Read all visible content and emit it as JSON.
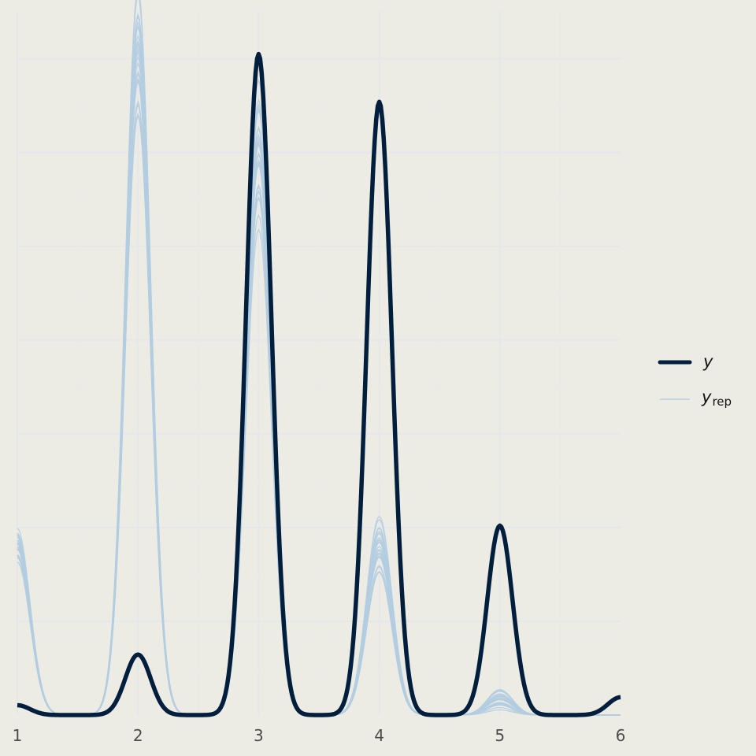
{
  "chart_data": {
    "type": "line",
    "title": "",
    "xlabel": "",
    "ylabel": "",
    "xlim": [
      1,
      6
    ],
    "ylim": [
      0,
      1.5
    ],
    "x_ticks": [
      "1",
      "2",
      "3",
      "4",
      "5",
      "6"
    ],
    "grid": true,
    "legend_position": "right",
    "legend": [
      {
        "label": "y",
        "subscript": ""
      },
      {
        "label": "y",
        "subscript": "rep"
      }
    ],
    "colors": {
      "background": "#ecece5",
      "grid_major": "#e6e7ea",
      "grid_minor": "#e9e9e6",
      "y": "#011f3d",
      "yrep": "#b3cde0",
      "tick_label": "#4d4d4d"
    },
    "series": [
      {
        "name": "y",
        "mixture": {
          "bandwidth": 0.105,
          "modes": [
            1,
            2,
            3,
            4,
            5,
            6
          ],
          "peak_density": [
            0.021,
            0.129,
            1.41,
            1.308,
            0.404,
            0.038
          ]
        }
      },
      {
        "name": "y_rep",
        "draws": 25,
        "mixture": {
          "bandwidth": 0.105,
          "modes": [
            1,
            2,
            3,
            4,
            5,
            6
          ],
          "peak_density": [
            0.36,
            1.41,
            1.195,
            0.36,
            0.035,
            0.0
          ],
          "peak_spread": [
            0.04,
            0.16,
            0.16,
            0.07,
            0.025,
            0.0
          ]
        }
      }
    ]
  }
}
